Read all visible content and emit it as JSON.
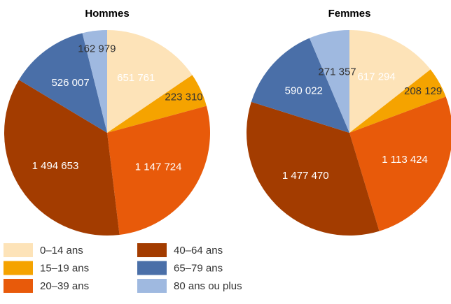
{
  "chart_data": [
    {
      "type": "pie",
      "title": "Hommes",
      "categories": [
        "0–14 ans",
        "15–19 ans",
        "20–39 ans",
        "40–64 ans",
        "65–79 ans",
        "80 ans ou plus"
      ],
      "values": [
        651761,
        223310,
        1147724,
        1494653,
        526007,
        162979
      ],
      "value_labels": [
        "651 761",
        "223 310",
        "1 147 724",
        "1 494 653",
        "526 007",
        "162 979"
      ],
      "colors": [
        "#fde3b8",
        "#f5a300",
        "#e85a0a",
        "#a33c00",
        "#4a6fa8",
        "#9fb9e0"
      ]
    },
    {
      "type": "pie",
      "title": "Femmes",
      "categories": [
        "0–14 ans",
        "15–19 ans",
        "20–39 ans",
        "40–64 ans",
        "65–79 ans",
        "80 ans ou plus"
      ],
      "values": [
        617294,
        208129,
        1113424,
        1477470,
        590022,
        271357
      ],
      "value_labels": [
        "617 294",
        "208 129",
        "1 113 424",
        "1 477 470",
        "590 022",
        "271 357"
      ],
      "colors": [
        "#fde3b8",
        "#f5a300",
        "#e85a0a",
        "#a33c00",
        "#4a6fa8",
        "#9fb9e0"
      ]
    }
  ]
}
